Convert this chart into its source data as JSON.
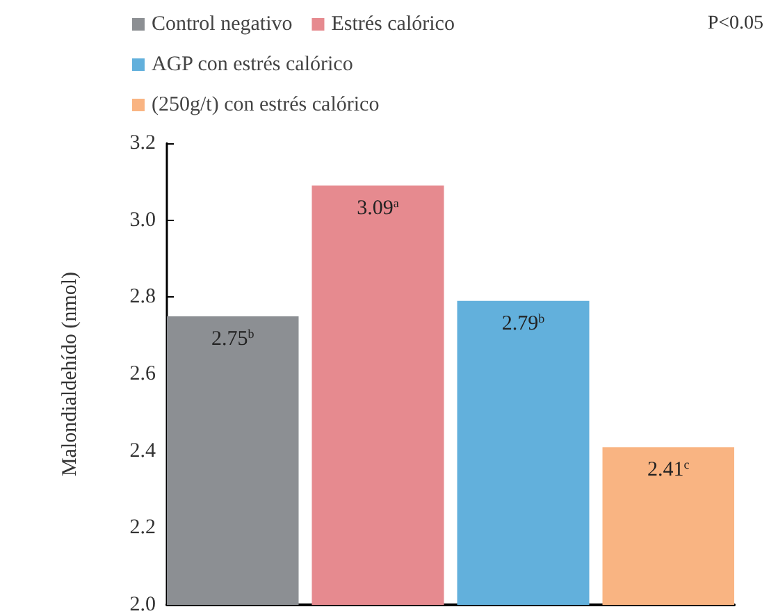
{
  "chart_data": {
    "type": "bar",
    "categories": [
      null
    ],
    "series": [
      {
        "name": "Control negativo",
        "color": "#8c8f93",
        "values": [
          2.75
        ],
        "value_labels": [
          "2.75$^{b}$"
        ]
      },
      {
        "name": "Estrés calórico",
        "color": "#e68a8f",
        "values": [
          3.09
        ],
        "value_labels": [
          "3.09$^{a}$"
        ]
      },
      {
        "name": "AGP con estrés calórico",
        "color": "#62b0dc",
        "values": [
          2.79
        ],
        "value_labels": [
          "2.79$^{b}$"
        ]
      },
      {
        "name": "(250g/t) con estrés calórico",
        "color": "#f9b482",
        "values": [
          2.41
        ],
        "value_labels": [
          "2.41$^{c}$"
        ]
      }
    ],
    "ylabel": "Malondialdehído (nmol)",
    "ylim": [
      2.0,
      3.2
    ],
    "yticks": [
      {
        "value": 2.0,
        "label": "2.0"
      },
      {
        "value": 2.2,
        "label": "2.2"
      },
      {
        "value": 2.4,
        "label": "2.4"
      },
      {
        "value": 2.6,
        "label": "2.6"
      },
      {
        "value": 2.8,
        "label": "2.8"
      },
      {
        "value": 3.0,
        "label": "3.0"
      },
      {
        "value": 3.2,
        "label": "3.2"
      }
    ],
    "annotations": [
      "P<0.05"
    ],
    "legend": "top",
    "grid": false
  }
}
